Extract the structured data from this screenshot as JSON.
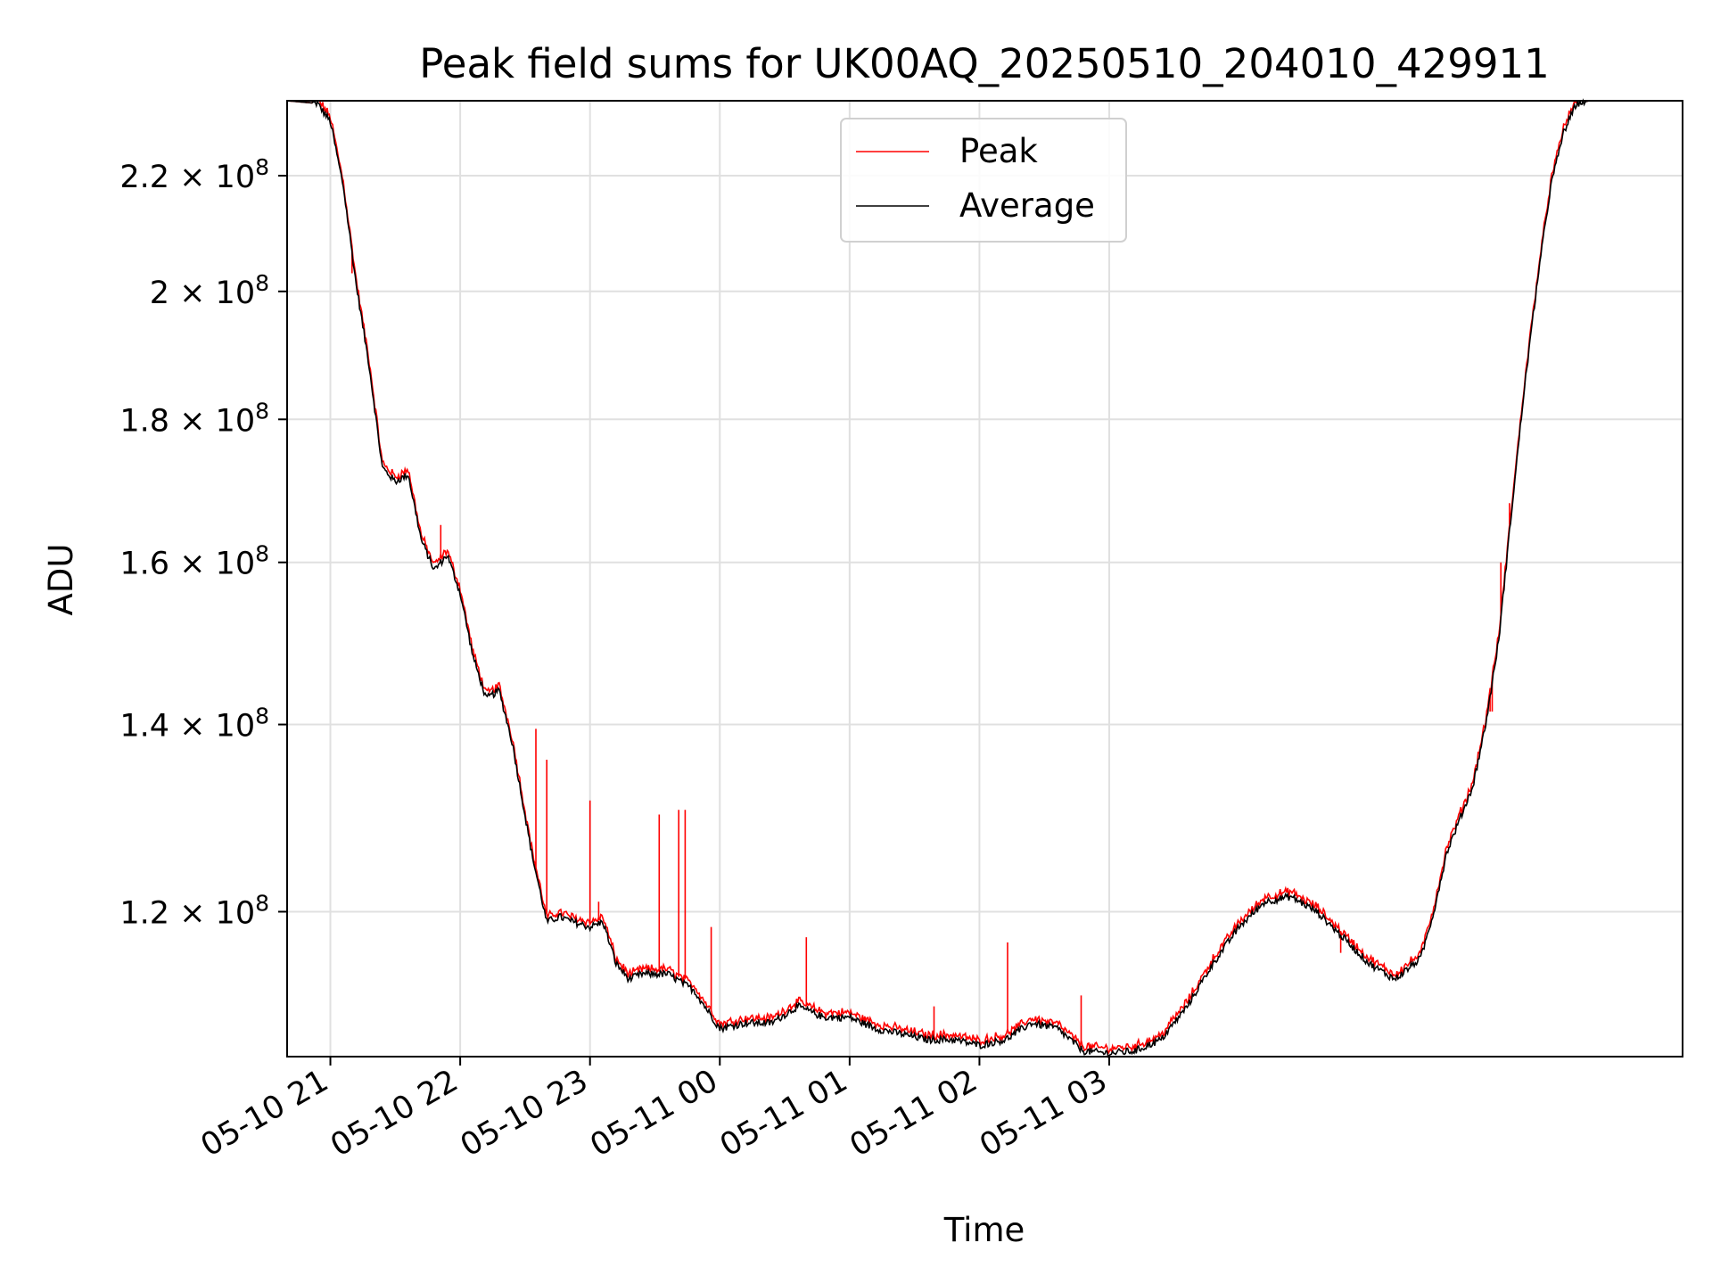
{
  "chart_data": {
    "type": "line",
    "title": "Peak field sums for UK00AQ_20250510_204010_429911",
    "xlabel": "Time",
    "ylabel": "ADU",
    "x_ticks": [
      "05-10 21",
      "05-10 22",
      "05-10 23",
      "05-11 00",
      "05-11 01",
      "05-11 02",
      "05-11 03"
    ],
    "x_tick_hours": [
      0,
      1,
      2,
      3,
      4,
      5,
      6
    ],
    "x_range": [
      "2025-05-10 20:40",
      "2025-05-11 03:25"
    ],
    "y_scale": "log",
    "ylim": [
      106500000,
      234000000
    ],
    "y_ticks": [
      {
        "value": 120000000,
        "mantissa": "1.2",
        "exp": "8"
      },
      {
        "value": 140000000,
        "mantissa": "1.4",
        "exp": "8"
      },
      {
        "value": 160000000,
        "mantissa": "1.6",
        "exp": "8"
      },
      {
        "value": 180000000,
        "mantissa": "1.8",
        "exp": "8"
      },
      {
        "value": 200000000,
        "mantissa": "2",
        "exp": "8"
      },
      {
        "value": 220000000,
        "mantissa": "2.2",
        "exp": "8"
      }
    ],
    "grid": true,
    "legend_position": "upper center",
    "series": [
      {
        "name": "Peak",
        "color": "#ff0000"
      },
      {
        "name": "Average",
        "color": "#000000"
      }
    ],
    "average_points": [
      [
        "20:40",
        234000000
      ],
      [
        "20:54",
        233500000
      ],
      [
        "21:00",
        230000000
      ],
      [
        "21:06",
        218000000
      ],
      [
        "21:12",
        201000000
      ],
      [
        "21:18",
        188000000
      ],
      [
        "21:24",
        173000000
      ],
      [
        "21:30",
        171000000
      ],
      [
        "21:36",
        172000000
      ],
      [
        "21:42",
        163000000
      ],
      [
        "21:48",
        159000000
      ],
      [
        "21:54",
        161000000
      ],
      [
        "22:00",
        156000000
      ],
      [
        "22:06",
        148000000
      ],
      [
        "22:12",
        143000000
      ],
      [
        "22:18",
        144000000
      ],
      [
        "22:24",
        138000000
      ],
      [
        "22:33",
        126000000
      ],
      [
        "22:40",
        119000000
      ],
      [
        "22:46",
        119500000
      ],
      [
        "22:52",
        119000000
      ],
      [
        "23:00",
        118500000
      ],
      [
        "23:06",
        119000000
      ],
      [
        "23:12",
        115000000
      ],
      [
        "23:18",
        113500000
      ],
      [
        "23:24",
        114000000
      ],
      [
        "23:36",
        114000000
      ],
      [
        "23:48",
        112500000
      ],
      [
        "24:00",
        109000000
      ],
      [
        "24:12",
        109500000
      ],
      [
        "24:24",
        109500000
      ],
      [
        "24:36",
        111000000
      ],
      [
        "24:48",
        110000000
      ],
      [
        "25:00",
        110000000
      ],
      [
        "25:12",
        109000000
      ],
      [
        "25:24",
        108500000
      ],
      [
        "25:36",
        108000000
      ],
      [
        "25:48",
        108000000
      ],
      [
        "26:00",
        107500000
      ],
      [
        "26:12",
        108000000
      ],
      [
        "26:24",
        109500000
      ],
      [
        "26:36",
        109000000
      ],
      [
        "26:48",
        107000000
      ],
      [
        "27:00",
        106800000
      ],
      [
        "27:12",
        107000000
      ],
      [
        "27:24",
        108000000
      ],
      [
        "27:36",
        111000000
      ],
      [
        "27:48",
        115000000
      ],
      [
        "28:00",
        118500000
      ],
      [
        "28:12",
        121000000
      ],
      [
        "28:24",
        121500000
      ],
      [
        "28:36",
        120000000
      ],
      [
        "28:48",
        117500000
      ],
      [
        "29:00",
        115000000
      ],
      [
        "29:12",
        113500000
      ],
      [
        "29:24",
        115500000
      ],
      [
        "29:30",
        120000000
      ],
      [
        "29:36",
        126000000
      ],
      [
        "29:42",
        129500000
      ],
      [
        "29:48",
        133000000
      ],
      [
        "29:54",
        140000000
      ],
      [
        "30:00",
        150000000
      ],
      [
        "30:06",
        167000000
      ],
      [
        "30:12",
        185000000
      ],
      [
        "30:18",
        202000000
      ],
      [
        "30:24",
        218000000
      ],
      [
        "30:30",
        228000000
      ],
      [
        "30:36",
        233500000
      ],
      [
        "30:42",
        234000000
      ],
      [
        "31:25",
        234000000
      ]
    ],
    "peak_spikes": [
      [
        "21:10",
        203000000
      ],
      [
        "21:51",
        165000000
      ],
      [
        "22:35",
        139500000
      ],
      [
        "22:40",
        136000000
      ],
      [
        "23:00",
        131500000
      ],
      [
        "23:04",
        121000000
      ],
      [
        "23:32",
        130000000
      ],
      [
        "23:41",
        130500000
      ],
      [
        "23:44",
        130500000
      ],
      [
        "23:56",
        118500000
      ],
      [
        "24:40",
        117500000
      ],
      [
        "25:39",
        111000000
      ],
      [
        "26:13",
        117000000
      ],
      [
        "26:47",
        112000000
      ],
      [
        "28:47",
        116000000
      ],
      [
        "29:56",
        141500000
      ],
      [
        "29:57",
        141500000
      ],
      [
        "30:01",
        160000000
      ],
      [
        "30:05",
        168000000
      ]
    ]
  }
}
